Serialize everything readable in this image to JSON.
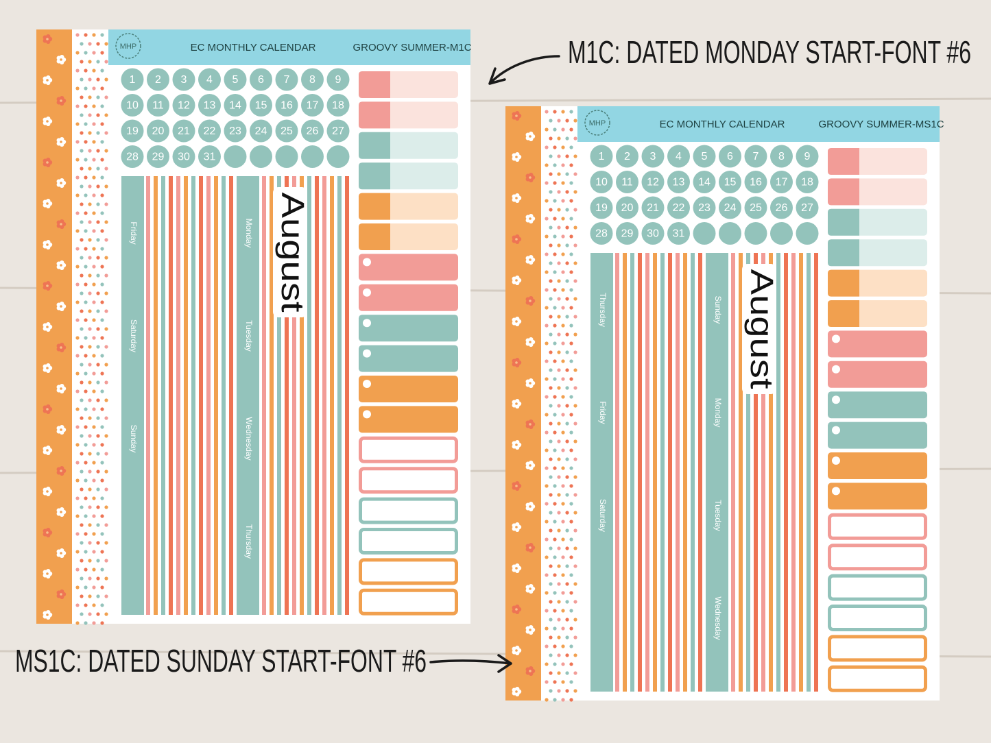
{
  "annotations": {
    "top": "M1C: DATED MONDAY START-FONT #6",
    "bottom": "MS1C: DATED SUNDAY START-FONT #6"
  },
  "sheets": [
    {
      "logo": "MHP",
      "title": "EC MONTHLY CALENDAR",
      "code": "GROOVY SUMMER-M1C",
      "dates": [
        1,
        2,
        3,
        4,
        5,
        6,
        7,
        8,
        9,
        10,
        11,
        12,
        13,
        14,
        15,
        16,
        17,
        18,
        19,
        20,
        21,
        22,
        23,
        24,
        25,
        26,
        27,
        28,
        29,
        30,
        31
      ],
      "month": "August",
      "strips": [
        [
          "Friday",
          "Saturday",
          "Sunday"
        ],
        [
          "Monday",
          "Tuesday",
          "Wednesday",
          "Thursday"
        ]
      ]
    },
    {
      "logo": "MHP",
      "title": "EC MONTHLY CALENDAR",
      "code": "GROOVY SUMMER-MS1C",
      "dates": [
        1,
        2,
        3,
        4,
        5,
        6,
        7,
        8,
        9,
        10,
        11,
        12,
        13,
        14,
        15,
        16,
        17,
        18,
        19,
        20,
        21,
        22,
        23,
        24,
        25,
        26,
        27,
        28,
        29,
        30,
        31
      ],
      "month": "August",
      "strips": [
        [
          "Thursday",
          "Friday",
          "Saturday"
        ],
        [
          "Sunday",
          "Monday",
          "Tuesday",
          "Wednesday"
        ]
      ]
    }
  ]
}
